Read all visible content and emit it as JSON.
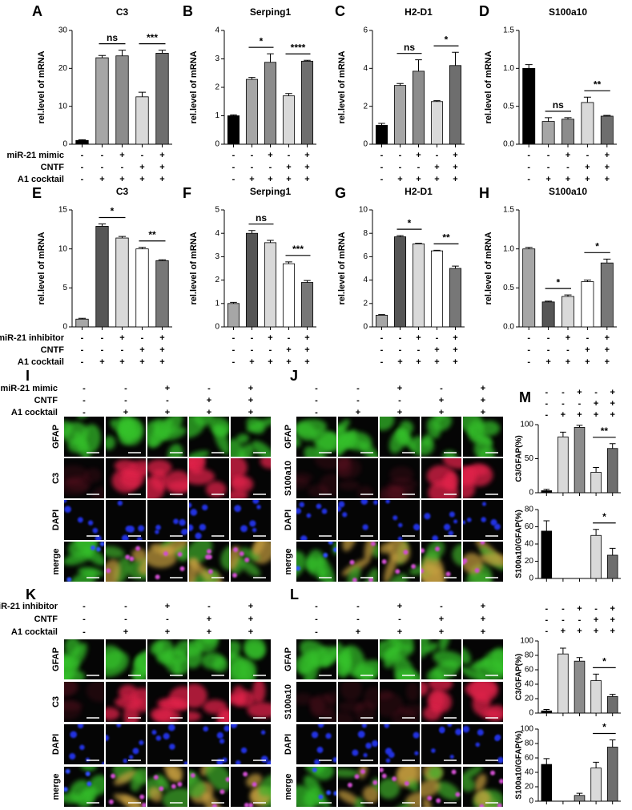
{
  "conditions": {
    "mimic": {
      "labels": [
        "miR-21 mimic",
        "CNTF",
        "A1 cocktail"
      ],
      "signs": [
        [
          "-",
          "-",
          "+",
          "-",
          "+"
        ],
        [
          "-",
          "-",
          "-",
          "+",
          "+"
        ],
        [
          "-",
          "+",
          "+",
          "+",
          "+"
        ]
      ]
    },
    "inhibitor": {
      "labels": [
        "miR-21 inhibitor",
        "CNTF",
        "A1 cocktail"
      ],
      "signs": [
        [
          "-",
          "-",
          "+",
          "-",
          "+"
        ],
        [
          "-",
          "-",
          "-",
          "+",
          "+"
        ],
        [
          "-",
          "+",
          "+",
          "+",
          "+"
        ]
      ]
    }
  },
  "chart_data": [
    {
      "type": "bar",
      "label": "A",
      "title": "C3",
      "ylabel": "rel.level of mRNA",
      "group": "mimic",
      "show_labels": true,
      "values": [
        1,
        22.8,
        23.3,
        12.5,
        24
      ],
      "errors": [
        0.2,
        0.6,
        1.5,
        1.2,
        0.8
      ],
      "colors": [
        "#000000",
        "#a6a6a6",
        "#8c8c8c",
        "#d9d9d9",
        "#6e6e6e"
      ],
      "ylim": [
        0,
        30
      ],
      "yticks": [
        0,
        10,
        20,
        30
      ],
      "annotations": [
        {
          "from": 1,
          "to": 2,
          "text": "ns"
        },
        {
          "from": 3,
          "to": 4,
          "text": "***"
        }
      ]
    },
    {
      "type": "bar",
      "label": "B",
      "title": "Serping1",
      "ylabel": "rel.level of mRNA",
      "group": "mimic",
      "show_labels": false,
      "values": [
        1,
        2.28,
        2.88,
        1.7,
        2.92
      ],
      "errors": [
        0.03,
        0.07,
        0.3,
        0.08,
        0.03
      ],
      "colors": [
        "#000000",
        "#a6a6a6",
        "#8c8c8c",
        "#d9d9d9",
        "#6e6e6e"
      ],
      "ylim": [
        0,
        4
      ],
      "yticks": [
        0,
        1,
        2,
        3,
        4
      ],
      "annotations": [
        {
          "from": 1,
          "to": 2,
          "text": "*"
        },
        {
          "from": 3,
          "to": 4,
          "text": "****"
        }
      ]
    },
    {
      "type": "bar",
      "label": "C",
      "title": "H2-D1",
      "ylabel": "rel.level of mRNA",
      "group": "mimic",
      "show_labels": false,
      "values": [
        1,
        3.1,
        3.85,
        2.25,
        4.15
      ],
      "errors": [
        0.1,
        0.1,
        0.6,
        0.05,
        0.7
      ],
      "colors": [
        "#000000",
        "#a6a6a6",
        "#8c8c8c",
        "#d9d9d9",
        "#6e6e6e"
      ],
      "ylim": [
        0,
        6
      ],
      "yticks": [
        0,
        2,
        4,
        6
      ],
      "annotations": [
        {
          "from": 1,
          "to": 2,
          "text": "ns"
        },
        {
          "from": 3,
          "to": 4,
          "text": "*"
        }
      ]
    },
    {
      "type": "bar",
      "label": "D",
      "title": "S100a10",
      "ylabel": "rel.level of mRNA",
      "group": "mimic",
      "show_labels": false,
      "values": [
        1.0,
        0.3,
        0.33,
        0.55,
        0.37
      ],
      "errors": [
        0.05,
        0.05,
        0.02,
        0.07,
        0.01
      ],
      "colors": [
        "#000000",
        "#a6a6a6",
        "#8c8c8c",
        "#d9d9d9",
        "#6e6e6e"
      ],
      "ylim": [
        0,
        1.5
      ],
      "yticks": [
        {
          "value": 0,
          "label": "0.0"
        },
        {
          "value": 0.5,
          "label": "0.5"
        },
        {
          "value": 1,
          "label": "1.0"
        },
        {
          "value": 1.5,
          "label": "1.5"
        }
      ],
      "annotations": [
        {
          "from": 1,
          "to": 2,
          "text": "ns"
        },
        {
          "from": 3,
          "to": 4,
          "text": "**"
        }
      ]
    },
    {
      "type": "bar",
      "label": "E",
      "title": "C3",
      "ylabel": "rel.level of mRNA",
      "group": "inhibitor",
      "show_labels": true,
      "values": [
        1,
        12.9,
        11.4,
        10,
        8.5
      ],
      "errors": [
        0.1,
        0.3,
        0.2,
        0.2,
        0.1
      ],
      "colors": [
        "#a6a6a6",
        "#555555",
        "#d9d9d9",
        "#ffffff",
        "#777777"
      ],
      "ylim": [
        0,
        15
      ],
      "yticks": [
        0,
        5,
        10,
        15
      ],
      "annotations": [
        {
          "from": 1,
          "to": 2,
          "text": "*"
        },
        {
          "from": 3,
          "to": 4,
          "text": "**"
        }
      ]
    },
    {
      "type": "bar",
      "label": "F",
      "title": "Serping1",
      "ylabel": "rel.level of mRNA",
      "group": "inhibitor",
      "show_labels": false,
      "values": [
        1,
        4,
        3.6,
        2.7,
        1.9
      ],
      "errors": [
        0.05,
        0.12,
        0.1,
        0.08,
        0.08
      ],
      "colors": [
        "#a6a6a6",
        "#555555",
        "#d9d9d9",
        "#ffffff",
        "#777777"
      ],
      "ylim": [
        0,
        5
      ],
      "yticks": [
        0,
        1,
        2,
        3,
        4,
        5
      ],
      "annotations": [
        {
          "from": 1,
          "to": 2,
          "text": "ns"
        },
        {
          "from": 3,
          "to": 4,
          "text": "***"
        }
      ]
    },
    {
      "type": "bar",
      "label": "G",
      "title": "H2-D1",
      "ylabel": "rel.level of mRNA",
      "group": "inhibitor",
      "show_labels": false,
      "values": [
        1,
        7.7,
        7.1,
        6.5,
        5
      ],
      "errors": [
        0.05,
        0.1,
        0.05,
        0.05,
        0.2
      ],
      "colors": [
        "#a6a6a6",
        "#555555",
        "#d9d9d9",
        "#ffffff",
        "#777777"
      ],
      "ylim": [
        0,
        10
      ],
      "yticks": [
        0,
        2,
        4,
        6,
        8,
        10
      ],
      "annotations": [
        {
          "from": 1,
          "to": 2,
          "text": "*"
        },
        {
          "from": 3,
          "to": 4,
          "text": "**"
        }
      ]
    },
    {
      "type": "bar",
      "label": "H",
      "title": "S100a10",
      "ylabel": "rel.level of mRNA",
      "group": "inhibitor",
      "show_labels": false,
      "values": [
        1.0,
        0.32,
        0.39,
        0.58,
        0.82
      ],
      "errors": [
        0.02,
        0.01,
        0.02,
        0.02,
        0.05
      ],
      "colors": [
        "#a6a6a6",
        "#555555",
        "#d9d9d9",
        "#ffffff",
        "#777777"
      ],
      "ylim": [
        0,
        1.5
      ],
      "yticks": [
        {
          "value": 0,
          "label": "0.0"
        },
        {
          "value": 0.5,
          "label": "0.5"
        },
        {
          "value": 1,
          "label": "1.0"
        },
        {
          "value": 1.5,
          "label": "1.5"
        }
      ],
      "annotations": [
        {
          "from": 1,
          "to": 2,
          "text": "*"
        },
        {
          "from": 3,
          "to": 4,
          "text": "*"
        }
      ]
    },
    {
      "type": "bar",
      "label": "M",
      "ylabel": "C3/GFAP(%)",
      "group": "mimic",
      "show_labels": false,
      "values": [
        3,
        82,
        96,
        30,
        65
      ],
      "errors": [
        2,
        7,
        3,
        7,
        7
      ],
      "colors": [
        "#000000",
        "#d9d9d9",
        "#8c8c8c",
        "#d9d9d9",
        "#6e6e6e"
      ],
      "ylim": [
        0,
        100
      ],
      "yticks": [
        0,
        50,
        100
      ],
      "annotations": [
        {
          "from": 3,
          "to": 4,
          "text": "**"
        }
      ]
    },
    {
      "type": "bar",
      "ylabel": "S100a10/GFAP(%)",
      "values": [
        55,
        0,
        0,
        50,
        27
      ],
      "errors": [
        12,
        0,
        0,
        7,
        8
      ],
      "colors": [
        "#000000",
        "#d9d9d9",
        "#8c8c8c",
        "#d9d9d9",
        "#6e6e6e"
      ],
      "ylim": [
        0,
        80
      ],
      "yticks": [
        0,
        20,
        40,
        60,
        80
      ],
      "annotations": [
        {
          "from": 3,
          "to": 4,
          "text": "*"
        }
      ]
    },
    {
      "type": "bar",
      "ylabel": "C3/GFAP(%)",
      "group": "inhibitor",
      "show_labels": false,
      "values": [
        3,
        82,
        72,
        45,
        23
      ],
      "errors": [
        2,
        8,
        5,
        9,
        3
      ],
      "colors": [
        "#000000",
        "#d9d9d9",
        "#8c8c8c",
        "#d9d9d9",
        "#6e6e6e"
      ],
      "ylim": [
        0,
        100
      ],
      "yticks": [
        0,
        20,
        40,
        60,
        80,
        100
      ],
      "annotations": [
        {
          "from": 3,
          "to": 4,
          "text": "*"
        }
      ]
    },
    {
      "type": "bar",
      "ylabel": "S100a10/GFAP(%)",
      "values": [
        51,
        0,
        8,
        46,
        75
      ],
      "errors": [
        8,
        0,
        3,
        8,
        10
      ],
      "colors": [
        "#000000",
        "#d9d9d9",
        "#8c8c8c",
        "#d9d9d9",
        "#6e6e6e"
      ],
      "ylim": [
        0,
        100
      ],
      "yticks": [
        0,
        20,
        40,
        60,
        80,
        100
      ],
      "annotations": [
        {
          "from": 3,
          "to": 4,
          "text": "*"
        }
      ]
    }
  ],
  "image_panels": [
    {
      "label": "I",
      "group": "mimic",
      "show_labels": true,
      "rows": [
        "GFAP",
        "C3",
        "DAPI",
        "merge"
      ]
    },
    {
      "label": "J",
      "group": "mimic",
      "show_labels": false,
      "rows": [
        "GFAP",
        "S100a10",
        "DAPI",
        "merge"
      ]
    },
    {
      "label": "K",
      "group": "inhibitor",
      "show_labels": true,
      "rows": [
        "GFAP",
        "C3",
        "DAPI",
        "merge"
      ]
    },
    {
      "label": "L",
      "group": "inhibitor",
      "show_labels": false,
      "rows": [
        "GFAP",
        "S100a10",
        "DAPI",
        "merge"
      ]
    }
  ]
}
